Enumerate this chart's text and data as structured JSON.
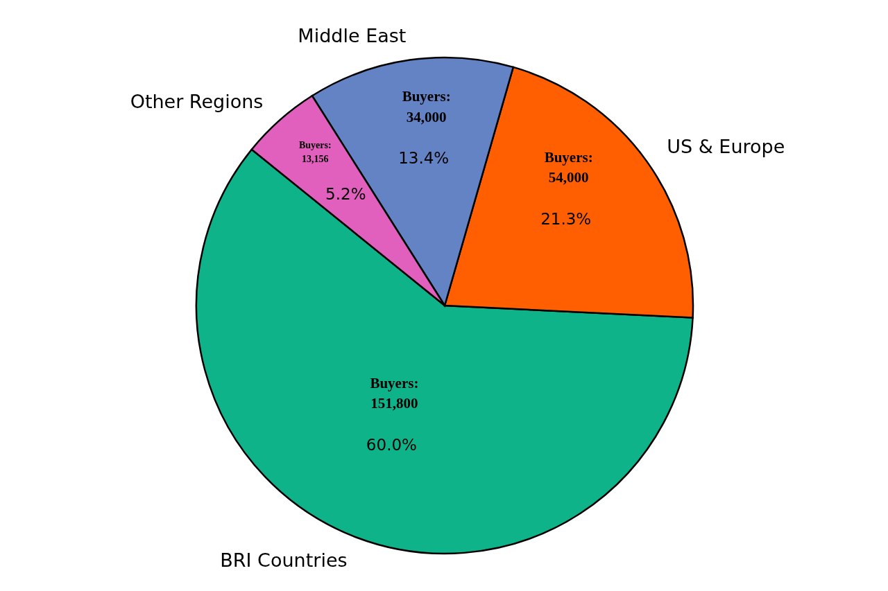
{
  "chart_data": {
    "type": "pie",
    "categories": [
      "BRI Countries",
      "US & Europe",
      "Middle East",
      "Other Regions"
    ],
    "values": [
      60.0,
      21.3,
      13.4,
      5.2
    ],
    "colors": [
      "#0fb38a",
      "#ff5f00",
      "#6383c4",
      "#e15fbd"
    ],
    "value_labels": [
      "Buyers:\n151,800\n60.0%",
      "Buyers:\n54,000\n21.3%",
      "Buyers:\n34,000\n13.4%",
      "Buyers:\n13,156\n5.2%"
    ]
  }
}
